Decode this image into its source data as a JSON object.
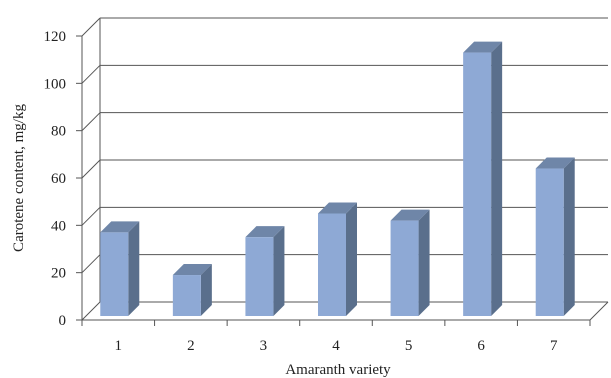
{
  "chart_data": {
    "type": "bar",
    "style": "3d-column",
    "categories": [
      "1",
      "2",
      "3",
      "4",
      "5",
      "6",
      "7"
    ],
    "values": [
      37,
      19,
      35,
      45,
      42,
      113,
      64
    ],
    "title": "",
    "xlabel": "Amaranth variety",
    "ylabel": "Carotene content, mg/kg",
    "ylim": [
      0,
      120
    ],
    "yticks": [
      "0",
      "20",
      "40",
      "60",
      "80",
      "100",
      "120"
    ],
    "grid": true,
    "legend": "none",
    "colors": {
      "bar_front": "#8EA9D5",
      "bar_side": "#5A6F8C",
      "bar_top": "#6F86A8",
      "grid": "#555555",
      "axis": "#555555"
    }
  }
}
